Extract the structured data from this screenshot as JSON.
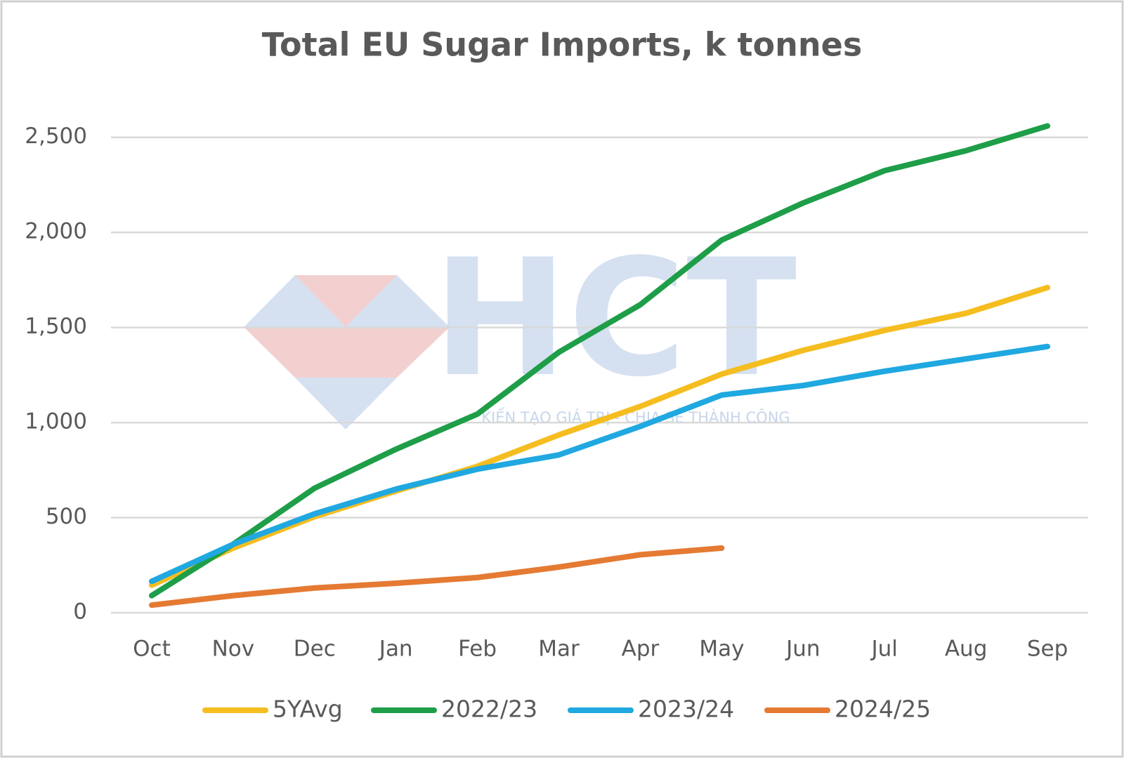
{
  "chart_data": {
    "type": "line",
    "title": "Total EU Sugar Imports, k tonnes",
    "categories": [
      "Oct",
      "Nov",
      "Dec",
      "Jan",
      "Feb",
      "Mar",
      "Apr",
      "May",
      "Jun",
      "Jul",
      "Aug",
      "Sep"
    ],
    "series": [
      {
        "name": "5YAvg",
        "color": "#f5bd1f",
        "values": [
          145,
          340,
          505,
          640,
          770,
          935,
          1085,
          1255,
          1380,
          1485,
          1575,
          1710
        ]
      },
      {
        "name": "2022/23",
        "color": "#1e9e48",
        "values": [
          90,
          360,
          655,
          860,
          1045,
          1370,
          1620,
          1960,
          2155,
          2325,
          2430,
          2560
        ]
      },
      {
        "name": "2023/24",
        "color": "#20a8e0",
        "values": [
          165,
          360,
          520,
          650,
          755,
          830,
          980,
          1145,
          1195,
          1270,
          1335,
          1400
        ]
      },
      {
        "name": "2024/25",
        "color": "#e57a33",
        "values": [
          40,
          90,
          130,
          155,
          185,
          240,
          305,
          340,
          null,
          null,
          null,
          null
        ]
      }
    ],
    "ylim": [
      0,
      2750
    ],
    "yticks": [
      0,
      500,
      {
        "value": 1000,
        "label": "1,000"
      },
      {
        "value": 1500,
        "label": "1,500"
      },
      {
        "value": 2000,
        "label": "2,000"
      },
      {
        "value": 2500,
        "label": "2,500"
      }
    ],
    "grid": true,
    "legend": "bottom"
  },
  "watermark": {
    "text": "HCT",
    "tagline": "KIẾN TẠO GIÁ TRỊ - CHIA SẺ THÀNH CÔNG"
  }
}
